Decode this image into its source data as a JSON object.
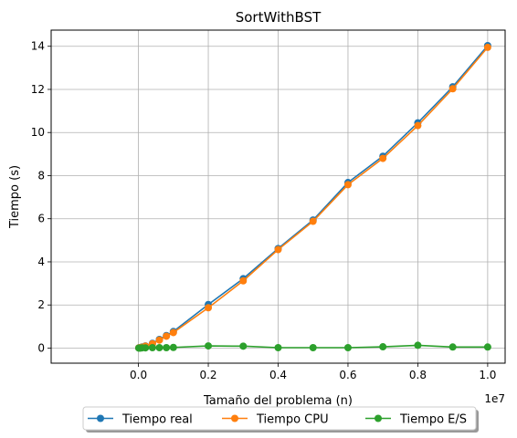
{
  "chart_data": {
    "type": "line",
    "title": "SortWithBST",
    "xlabel": "Tamaño del problema (n)",
    "ylabel": "Tiempo (s)",
    "x_offset_label": "1e7",
    "xlim": [
      -2500000,
      10500000
    ],
    "ylim": [
      -0.7,
      14.75
    ],
    "xticks": [
      0,
      2000000,
      4000000,
      6000000,
      8000000,
      10000000
    ],
    "xtick_labels": [
      "0.0",
      "0.2",
      "0.4",
      "0.6",
      "0.8",
      "1.0"
    ],
    "yticks": [
      0,
      2,
      4,
      6,
      8,
      10,
      12,
      14
    ],
    "ytick_labels": [
      "0",
      "2",
      "4",
      "6",
      "8",
      "10",
      "12",
      "14"
    ],
    "grid": true,
    "legend_position": "bottom-center",
    "x": [
      10000,
      50000,
      100000,
      200000,
      400000,
      600000,
      800000,
      1000000,
      2000000,
      3000000,
      4000000,
      5000000,
      6000000,
      7000000,
      8000000,
      9000000,
      10000000
    ],
    "series": [
      {
        "name": "Tiempo real",
        "color": "#1f77b4",
        "values": [
          0.01,
          0.02,
          0.05,
          0.1,
          0.22,
          0.4,
          0.58,
          0.77,
          2.02,
          3.22,
          4.62,
          5.94,
          7.68,
          8.9,
          10.45,
          12.12,
          14.03
        ]
      },
      {
        "name": "Tiempo CPU",
        "color": "#ff7f0e",
        "values": [
          0.01,
          0.02,
          0.04,
          0.09,
          0.2,
          0.37,
          0.55,
          0.72,
          1.87,
          3.12,
          4.57,
          5.88,
          7.58,
          8.8,
          10.32,
          12.03,
          13.95
        ]
      },
      {
        "name": "Tiempo E/S",
        "color": "#2ca02c",
        "values": [
          0.0,
          0.0,
          0.01,
          0.01,
          0.02,
          0.02,
          0.02,
          0.03,
          0.1,
          0.09,
          0.02,
          0.02,
          0.02,
          0.06,
          0.13,
          0.05,
          0.05
        ]
      }
    ]
  }
}
